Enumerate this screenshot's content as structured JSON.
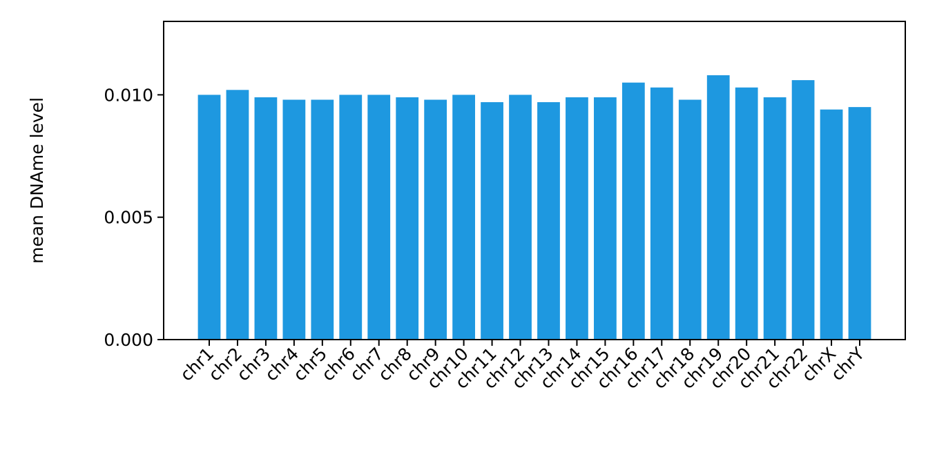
{
  "chart_data": {
    "type": "bar",
    "title": "",
    "xlabel": "",
    "ylabel": "mean DNAme level",
    "ylim": [
      0,
      0.013
    ],
    "yticks": [
      "0.000",
      "0.005",
      "0.010"
    ],
    "ytick_values": [
      0,
      0.005,
      0.01
    ],
    "bar_color": "#1e98e0",
    "categories": [
      "chr1",
      "chr2",
      "chr3",
      "chr4",
      "chr5",
      "chr6",
      "chr7",
      "chr8",
      "chr9",
      "chr10",
      "chr11",
      "chr12",
      "chr13",
      "chr14",
      "chr15",
      "chr16",
      "chr17",
      "chr18",
      "chr19",
      "chr20",
      "chr21",
      "chr22",
      "chrX",
      "chrY"
    ],
    "values": [
      0.01,
      0.0102,
      0.0099,
      0.0098,
      0.0098,
      0.01,
      0.01,
      0.0099,
      0.0098,
      0.01,
      0.0097,
      0.01,
      0.0097,
      0.0099,
      0.0099,
      0.0105,
      0.0103,
      0.0098,
      0.0108,
      0.0103,
      0.0099,
      0.0106,
      0.0094,
      0.0095
    ],
    "grid": false,
    "legend": "none"
  }
}
